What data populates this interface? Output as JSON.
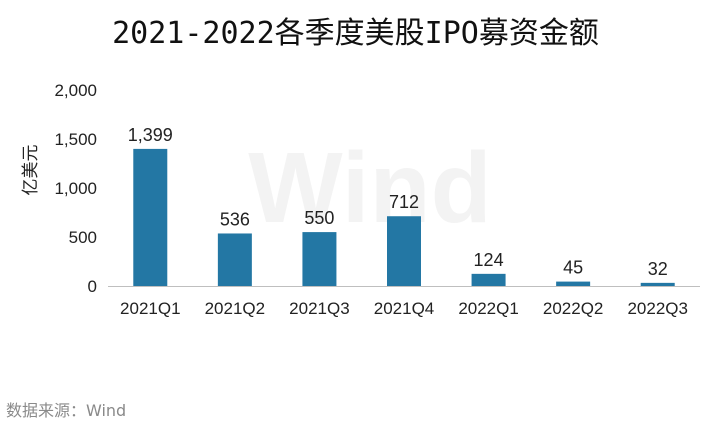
{
  "chart_data": {
    "type": "bar",
    "title": "2021-2022各季度美股IPO募资金额",
    "ylabel": "亿美元",
    "xlabel": "",
    "categories": [
      "2021Q1",
      "2021Q2",
      "2021Q3",
      "2021Q4",
      "2022Q1",
      "2022Q2",
      "2022Q3"
    ],
    "values": [
      1399,
      536,
      550,
      712,
      124,
      45,
      32
    ],
    "value_labels": [
      "1,399",
      "536",
      "550",
      "712",
      "124",
      "45",
      "32"
    ],
    "ylim": [
      0,
      2000
    ],
    "yticks": [
      0,
      500,
      1000,
      1500,
      2000
    ],
    "ytick_labels": [
      "0",
      "500",
      "1,000",
      "1,500",
      "2,000"
    ],
    "bar_color": "#2377a4",
    "grid": false,
    "legend": "none"
  },
  "watermark": "Wind",
  "source_note": "数据来源：Wind"
}
